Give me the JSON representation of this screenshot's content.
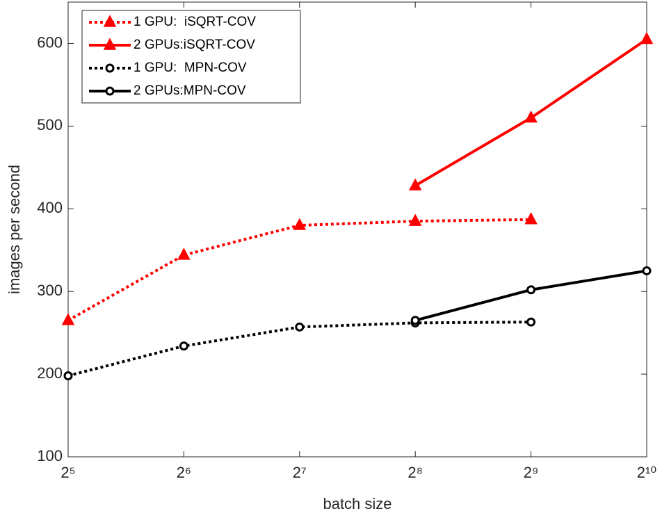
{
  "chart_data": {
    "type": "line",
    "xlabel": "batch size",
    "ylabel": "images per second",
    "x": [
      32,
      64,
      128,
      256,
      512,
      1024
    ],
    "xscale": "log2",
    "xlim": [
      32,
      1024
    ],
    "xticks": [
      {
        "value": 32,
        "label": "2⁵"
      },
      {
        "value": 64,
        "label": "2⁶"
      },
      {
        "value": 128,
        "label": "2⁷"
      },
      {
        "value": 256,
        "label": "2⁸"
      },
      {
        "value": 512,
        "label": "2⁹"
      },
      {
        "value": 1024,
        "label": "2¹⁰"
      }
    ],
    "ylim": [
      100,
      650
    ],
    "yticks": [
      100,
      200,
      300,
      400,
      500,
      600
    ],
    "grid": false,
    "legend": "upper left",
    "series": [
      {
        "name": "1 GPU:  iSQRT-COV",
        "color": "#ff0000",
        "linestyle": "dotted",
        "marker": "triangle",
        "values": [
          265,
          344,
          380,
          385,
          387,
          null
        ]
      },
      {
        "name": "2 GPUs:iSQRT-COV",
        "color": "#ff0000",
        "linestyle": "solid",
        "marker": "triangle",
        "values": [
          null,
          null,
          null,
          428,
          510,
          605
        ]
      },
      {
        "name": "1 GPU:  MPN-COV",
        "color": "#000000",
        "linestyle": "dotted",
        "marker": "circle",
        "values": [
          198,
          234,
          257,
          262,
          263,
          null
        ]
      },
      {
        "name": "2 GPUs:MPN-COV",
        "color": "#000000",
        "linestyle": "solid",
        "marker": "circle",
        "values": [
          null,
          null,
          null,
          265,
          302,
          325
        ]
      }
    ]
  }
}
